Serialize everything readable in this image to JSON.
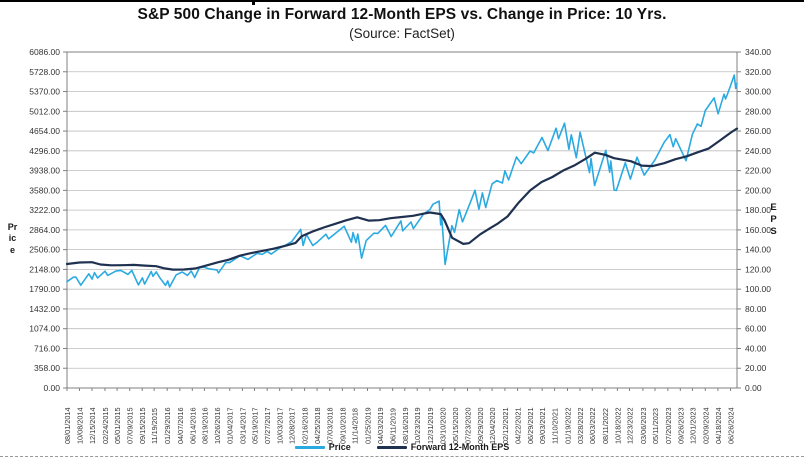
{
  "chart": {
    "title": "S&P 500 Change in Forward 12-Month EPS vs. Change in Price: 10 Yrs.",
    "subtitle": "(Source: FactSet)",
    "ylabel_left": "Price",
    "ylabel_right": "EPS"
  },
  "legend": {
    "items": [
      {
        "label": "Price",
        "color": "#2BAAE2"
      },
      {
        "label": "Forward 12-Month EPS",
        "color": "#1F3150"
      }
    ]
  },
  "colors": {
    "price_line": "#2BAAE2",
    "eps_line": "#1F3150",
    "gridline": "#bdbdbd",
    "frame": "#808080",
    "axis_text": "#333333"
  },
  "chart_data": {
    "type": "line",
    "title": "S&P 500 Change in Forward 12-Month EPS vs. Change in Price: 10 Yrs.",
    "subtitle": "(Source: FactSet)",
    "grid": "horizontal",
    "legend_position": "bottom",
    "x_axis": {
      "start": "08/01/2014",
      "end": "07/31/2024",
      "tick_labels": [
        "08/01/2014",
        "10/08/2014",
        "12/15/2014",
        "02/24/2015",
        "05/01/2015",
        "07/09/2015",
        "09/15/2015",
        "11/19/2015",
        "01/29/2016",
        "04/07/2016",
        "06/14/2016",
        "08/19/2016",
        "10/26/2016",
        "01/04/2017",
        "03/14/2017",
        "05/19/2017",
        "07/27/2017",
        "10/03/2017",
        "12/08/2017",
        "02/16/2018",
        "04/25/2018",
        "07/03/2018",
        "09/10/2018",
        "11/14/2018",
        "01/25/2019",
        "04/03/2019",
        "06/11/2019",
        "08/16/2019",
        "10/23/2019",
        "12/31/2019",
        "03/10/2020",
        "05/15/2020",
        "07/23/2020",
        "09/29/2020",
        "12/04/2020",
        "02/12/2021",
        "04/22/2021",
        "06/29/2021",
        "09/03/2021",
        "11/10/2021",
        "01/19/2022",
        "03/28/2022",
        "06/03/2022",
        "08/11/2022",
        "10/18/2022",
        "12/23/2022",
        "03/06/2023",
        "05/11/2023",
        "07/20/2023",
        "09/26/2023",
        "12/01/2023",
        "02/09/2024",
        "04/18/2024",
        "06/26/2024"
      ]
    },
    "y_axis_left": {
      "label": "Price",
      "min": 0,
      "max": 6086,
      "tick_step": 358,
      "tick_labels": [
        "0.00",
        "358.00",
        "716.00",
        "1074.00",
        "1432.00",
        "1790.00",
        "2148.00",
        "2506.00",
        "2864.00",
        "3222.00",
        "3580.00",
        "3938.00",
        "4296.00",
        "4654.00",
        "5012.00",
        "5370.00",
        "5728.00",
        "6086.00"
      ]
    },
    "y_axis_right": {
      "label": "EPS",
      "min": 0,
      "max": 340,
      "tick_step": 20,
      "tick_labels": [
        "0.00",
        "20.00",
        "40.00",
        "60.00",
        "80.00",
        "100.00",
        "120.00",
        "140.00",
        "160.00",
        "180.00",
        "200.00",
        "220.00",
        "240.00",
        "260.00",
        "280.00",
        "300.00",
        "320.00",
        "340.00"
      ]
    },
    "series": [
      {
        "name": "Price",
        "axis": "left",
        "color": "#2BAAE2",
        "width": 1.6,
        "points": [
          [
            "08/01/2014",
            1925
          ],
          [
            "09/05/2014",
            2007
          ],
          [
            "09/18/2014",
            2011
          ],
          [
            "10/15/2014",
            1862
          ],
          [
            "11/28/2014",
            2068
          ],
          [
            "12/16/2014",
            1973
          ],
          [
            "12/29/2014",
            2091
          ],
          [
            "01/15/2015",
            1993
          ],
          [
            "02/24/2015",
            2115
          ],
          [
            "03/11/2015",
            2040
          ],
          [
            "04/24/2015",
            2118
          ],
          [
            "05/21/2015",
            2131
          ],
          [
            "06/29/2015",
            2057
          ],
          [
            "07/20/2015",
            2128
          ],
          [
            "08/25/2015",
            1868
          ],
          [
            "09/16/2015",
            1995
          ],
          [
            "09/28/2015",
            1882
          ],
          [
            "11/03/2015",
            2110
          ],
          [
            "11/13/2015",
            2023
          ],
          [
            "12/01/2015",
            2103
          ],
          [
            "12/18/2015",
            2005
          ],
          [
            "01/20/2016",
            1859
          ],
          [
            "02/01/2016",
            1940
          ],
          [
            "02/11/2016",
            1829
          ],
          [
            "03/18/2016",
            2050
          ],
          [
            "04/20/2016",
            2102
          ],
          [
            "05/19/2016",
            2040
          ],
          [
            "06/08/2016",
            2119
          ],
          [
            "06/27/2016",
            2001
          ],
          [
            "07/22/2016",
            2175
          ],
          [
            "08/15/2016",
            2190
          ],
          [
            "09/12/2016",
            2159
          ],
          [
            "10/26/2016",
            2139
          ],
          [
            "11/04/2016",
            2085
          ],
          [
            "12/13/2016",
            2271
          ],
          [
            "01/04/2017",
            2271
          ],
          [
            "03/01/2017",
            2396
          ],
          [
            "04/13/2017",
            2329
          ],
          [
            "06/02/2017",
            2439
          ],
          [
            "06/29/2017",
            2420
          ],
          [
            "07/27/2017",
            2475
          ],
          [
            "08/18/2017",
            2426
          ],
          [
            "10/03/2017",
            2535
          ],
          [
            "11/08/2017",
            2594
          ],
          [
            "12/08/2017",
            2652
          ],
          [
            "01/26/2018",
            2873
          ],
          [
            "02/08/2018",
            2581
          ],
          [
            "02/26/2018",
            2780
          ],
          [
            "04/02/2018",
            2582
          ],
          [
            "04/25/2018",
            2639
          ],
          [
            "06/12/2018",
            2786
          ],
          [
            "06/27/2018",
            2700
          ],
          [
            "09/20/2018",
            2931
          ],
          [
            "10/29/2018",
            2641
          ],
          [
            "11/07/2018",
            2814
          ],
          [
            "11/23/2018",
            2632
          ],
          [
            "12/03/2018",
            2790
          ],
          [
            "12/24/2018",
            2351
          ],
          [
            "01/18/2019",
            2670
          ],
          [
            "03/01/2019",
            2804
          ],
          [
            "03/22/2019",
            2801
          ],
          [
            "05/03/2019",
            2946
          ],
          [
            "06/03/2019",
            2744
          ],
          [
            "07/26/2019",
            3026
          ],
          [
            "08/05/2019",
            2845
          ],
          [
            "08/16/2019",
            2889
          ],
          [
            "09/19/2019",
            3007
          ],
          [
            "10/02/2019",
            2888
          ],
          [
            "11/27/2019",
            3154
          ],
          [
            "12/31/2019",
            3231
          ],
          [
            "01/17/2020",
            3330
          ],
          [
            "02/19/2020",
            3386
          ],
          [
            "02/28/2020",
            2954
          ],
          [
            "03/04/2020",
            3130
          ],
          [
            "03/23/2020",
            2237
          ],
          [
            "04/29/2020",
            2940
          ],
          [
            "05/13/2020",
            2820
          ],
          [
            "06/08/2020",
            3232
          ],
          [
            "06/26/2020",
            3009
          ],
          [
            "08/06/2020",
            3349
          ],
          [
            "09/02/2020",
            3581
          ],
          [
            "09/23/2020",
            3237
          ],
          [
            "10/12/2020",
            3534
          ],
          [
            "10/30/2020",
            3270
          ],
          [
            "12/04/2020",
            3699
          ],
          [
            "12/31/2020",
            3756
          ],
          [
            "01/29/2021",
            3714
          ],
          [
            "02/12/2021",
            3935
          ],
          [
            "03/04/2021",
            3768
          ],
          [
            "04/16/2021",
            4185
          ],
          [
            "05/12/2021",
            4063
          ],
          [
            "06/29/2021",
            4292
          ],
          [
            "07/19/2021",
            4258
          ],
          [
            "09/02/2021",
            4537
          ],
          [
            "10/04/2021",
            4300
          ],
          [
            "11/18/2021",
            4705
          ],
          [
            "12/01/2021",
            4513
          ],
          [
            "01/03/2022",
            4797
          ],
          [
            "01/27/2022",
            4326
          ],
          [
            "02/09/2022",
            4587
          ],
          [
            "03/08/2022",
            4171
          ],
          [
            "03/29/2022",
            4632
          ],
          [
            "05/19/2022",
            3901
          ],
          [
            "05/27/2022",
            4158
          ],
          [
            "06/16/2022",
            3667
          ],
          [
            "08/16/2022",
            4305
          ],
          [
            "09/06/2022",
            3908
          ],
          [
            "09/12/2022",
            4110
          ],
          [
            "09/30/2022",
            3586
          ],
          [
            "10/12/2022",
            3577
          ],
          [
            "11/30/2022",
            4080
          ],
          [
            "12/28/2022",
            3783
          ],
          [
            "02/02/2023",
            4180
          ],
          [
            "03/13/2023",
            3856
          ],
          [
            "05/11/2023",
            4131
          ],
          [
            "06/30/2023",
            4450
          ],
          [
            "07/31/2023",
            4589
          ],
          [
            "08/18/2023",
            4370
          ],
          [
            "09/01/2023",
            4516
          ],
          [
            "10/27/2023",
            4117
          ],
          [
            "12/01/2023",
            4595
          ],
          [
            "12/28/2023",
            4783
          ],
          [
            "01/17/2024",
            4739
          ],
          [
            "02/09/2024",
            5027
          ],
          [
            "03/28/2024",
            5254
          ],
          [
            "04/19/2024",
            4967
          ],
          [
            "05/21/2024",
            5321
          ],
          [
            "05/30/2024",
            5235
          ],
          [
            "06/26/2024",
            5478
          ],
          [
            "07/16/2024",
            5667
          ],
          [
            "07/24/2024",
            5427
          ],
          [
            "07/31/2024",
            5522
          ]
        ]
      },
      {
        "name": "Forward 12-Month EPS",
        "axis": "right",
        "color": "#1F3150",
        "width": 2.2,
        "points": [
          [
            "08/01/2014",
            125.5
          ],
          [
            "10/08/2014",
            127.0
          ],
          [
            "12/15/2014",
            127.3
          ],
          [
            "01/30/2015",
            125.0
          ],
          [
            "03/31/2015",
            124.2
          ],
          [
            "05/29/2015",
            124.3
          ],
          [
            "07/31/2015",
            124.6
          ],
          [
            "09/30/2015",
            123.9
          ],
          [
            "11/30/2015",
            123.2
          ],
          [
            "01/15/2016",
            121.0
          ],
          [
            "02/29/2016",
            119.8
          ],
          [
            "04/29/2016",
            119.9
          ],
          [
            "06/30/2016",
            120.9
          ],
          [
            "08/31/2016",
            124.1
          ],
          [
            "10/31/2016",
            127.2
          ],
          [
            "12/30/2016",
            129.8
          ],
          [
            "02/28/2017",
            133.9
          ],
          [
            "04/28/2017",
            136.4
          ],
          [
            "06/30/2017",
            138.7
          ],
          [
            "08/31/2017",
            141.0
          ],
          [
            "10/31/2017",
            143.8
          ],
          [
            "12/29/2017",
            146.8
          ],
          [
            "01/31/2018",
            153.5
          ],
          [
            "03/29/2018",
            158.2
          ],
          [
            "05/31/2018",
            162.4
          ],
          [
            "07/31/2018",
            166.1
          ],
          [
            "09/28/2018",
            169.6
          ],
          [
            "11/30/2018",
            172.7
          ],
          [
            "01/31/2019",
            169.4
          ],
          [
            "03/29/2019",
            169.8
          ],
          [
            "05/31/2019",
            171.8
          ],
          [
            "07/31/2019",
            173.0
          ],
          [
            "09/30/2019",
            174.3
          ],
          [
            "11/29/2019",
            176.5
          ],
          [
            "12/31/2019",
            177.6
          ],
          [
            "02/28/2020",
            176.0
          ],
          [
            "03/20/2020",
            169.5
          ],
          [
            "04/30/2020",
            152.0
          ],
          [
            "06/30/2020",
            145.8
          ],
          [
            "07/31/2020",
            146.5
          ],
          [
            "09/30/2020",
            155.5
          ],
          [
            "11/30/2020",
            162.5
          ],
          [
            "12/31/2020",
            165.9
          ],
          [
            "02/26/2021",
            173.5
          ],
          [
            "04/30/2021",
            188.0
          ],
          [
            "06/30/2021",
            200.0
          ],
          [
            "08/31/2021",
            208.5
          ],
          [
            "10/29/2021",
            213.5
          ],
          [
            "12/31/2021",
            220.5
          ],
          [
            "02/28/2022",
            225.5
          ],
          [
            "04/29/2022",
            232.0
          ],
          [
            "06/17/2022",
            238.1
          ],
          [
            "08/12/2022",
            236.0
          ],
          [
            "09/30/2022",
            232.5
          ],
          [
            "11/30/2022",
            230.5
          ],
          [
            "12/30/2022",
            229.5
          ],
          [
            "02/28/2023",
            225.0
          ],
          [
            "04/28/2023",
            224.5
          ],
          [
            "06/30/2023",
            227.5
          ],
          [
            "08/31/2023",
            231.5
          ],
          [
            "10/31/2023",
            234.5
          ],
          [
            "12/29/2023",
            238.5
          ],
          [
            "02/29/2024",
            242.5
          ],
          [
            "04/30/2024",
            250.5
          ],
          [
            "06/28/2024",
            258.5
          ],
          [
            "07/31/2024",
            262.5
          ]
        ]
      }
    ]
  }
}
